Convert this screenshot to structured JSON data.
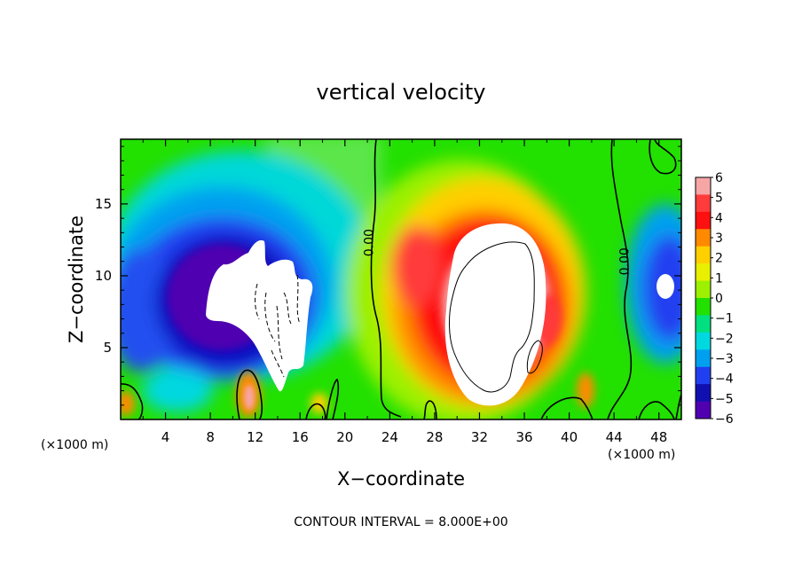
{
  "chart_data": {
    "type": "heatmap",
    "title": "vertical velocity",
    "xlabel": "X−coordinate",
    "ylabel": "Z−coordinate",
    "x_unit_left": "(×1000 m)",
    "x_unit_right": "(×1000 m)",
    "footer": "CONTOUR INTERVAL = 8.000E+00",
    "xlim": [
      0,
      50
    ],
    "ylim": [
      0,
      19.5
    ],
    "x_ticks": [
      "4",
      "8",
      "12",
      "16",
      "20",
      "24",
      "28",
      "32",
      "36",
      "40",
      "44",
      "48"
    ],
    "x_tick_values": [
      4,
      8,
      12,
      16,
      20,
      24,
      28,
      32,
      36,
      40,
      44,
      48
    ],
    "y_ticks": [
      "5",
      "10",
      "15"
    ],
    "y_tick_values": [
      5,
      10,
      15
    ],
    "contour_labels": [
      {
        "text": "0.00",
        "x": 22.5,
        "z": 12.3
      },
      {
        "text": "0.00",
        "x": 45.3,
        "z": 11.0
      }
    ],
    "colorbar": {
      "labels": [
        "6",
        "5",
        "4",
        "3",
        "2",
        "1",
        "0",
        "−1",
        "−2",
        "−3",
        "−4",
        "−5",
        "−6"
      ],
      "colors": [
        "#f7a6a6",
        "#ff3b3b",
        "#ff1010",
        "#ff8a00",
        "#ffcf00",
        "#e8f000",
        "#9cf000",
        "#22e000",
        "#00e080",
        "#00d8e0",
        "#00a0f0",
        "#2040f0",
        "#1010b0",
        "#5000b0"
      ]
    },
    "features": [
      {
        "kind": "updraft_core",
        "x": 33.5,
        "z": 9.0,
        "value": ">6"
      },
      {
        "kind": "downdraft_core",
        "x": 12.0,
        "z": 9.5,
        "value": "<-6"
      },
      {
        "kind": "downdraft_core",
        "x": 48.8,
        "z": 9.6,
        "value": "<-6"
      }
    ]
  }
}
